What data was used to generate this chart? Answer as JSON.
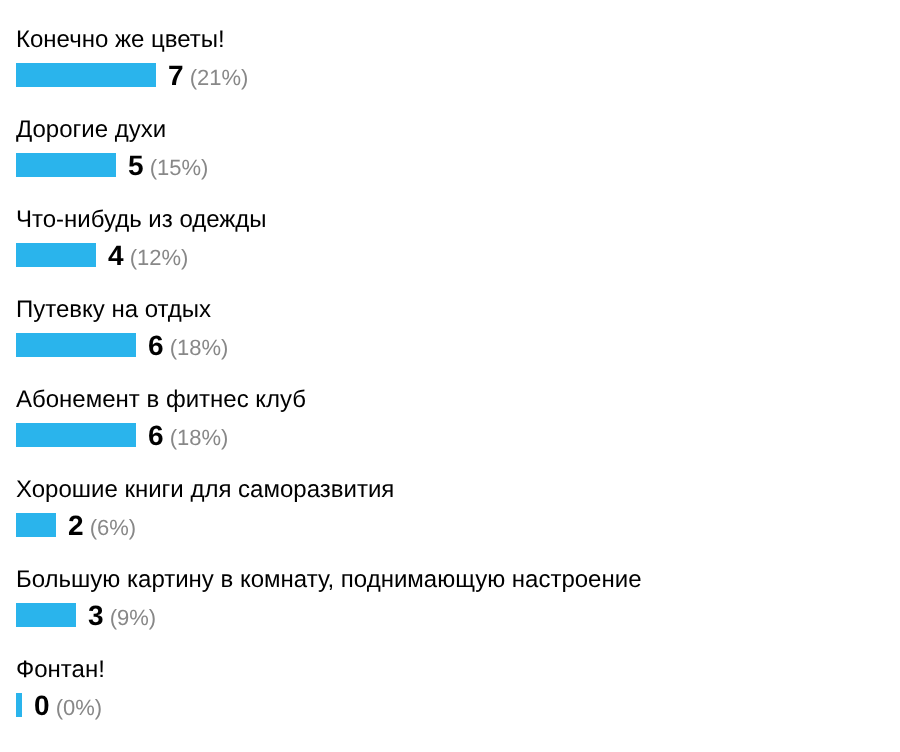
{
  "chart_data": {
    "type": "bar",
    "orientation": "horizontal",
    "categories": [
      "Конечно же цветы!",
      "Дорогие духи",
      "Что-нибудь из одежды",
      "Путевку на отдых",
      "Абонемент в фитнес клуб",
      "Хорошие книги для саморазвития",
      "Большую картину в комнату, поднимающую настроение",
      "Фонтан!"
    ],
    "values": [
      7,
      5,
      4,
      6,
      6,
      2,
      3,
      0
    ],
    "value_labels": [
      "7 (21%)",
      "5 (15%)",
      "4 (12%)",
      "6 (18%)",
      "6 (18%)",
      "2 (6%)",
      "3 (9%)",
      "0 (0%)"
    ],
    "color": "#2ab4ec"
  }
}
